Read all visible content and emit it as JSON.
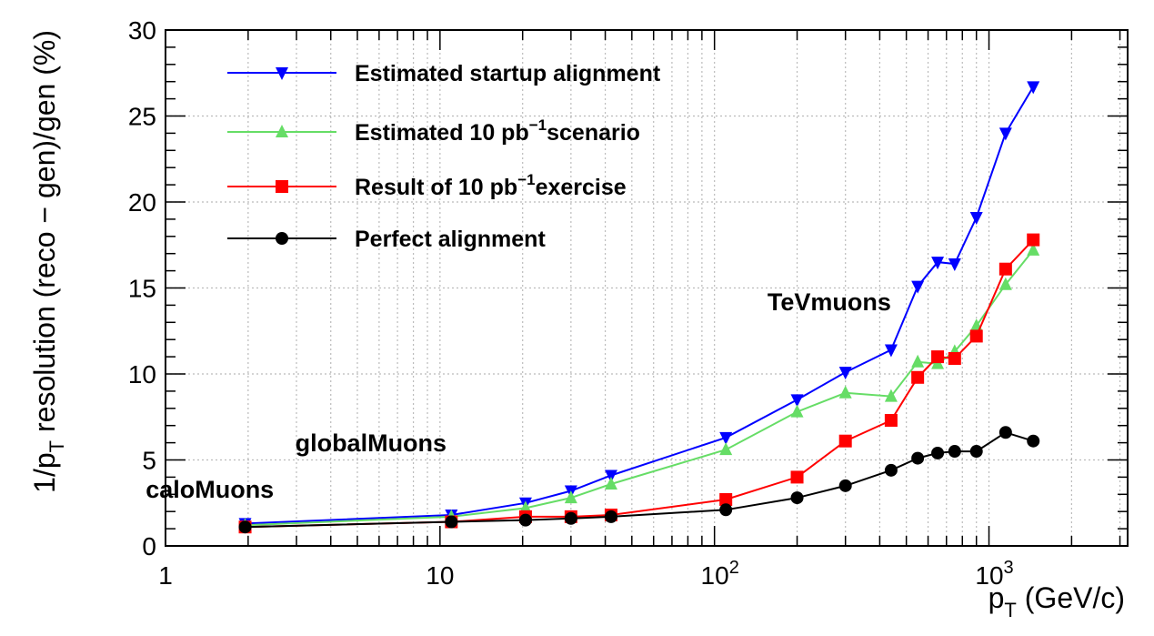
{
  "chart_data": {
    "type": "line",
    "xscale": "log",
    "xlim": [
      1,
      3200
    ],
    "ylim": [
      0,
      30
    ],
    "grid": true,
    "legend_position": "top-left",
    "title": "",
    "xlabel": {
      "main": "p",
      "sub": "T",
      "rest": " (GeV/c)"
    },
    "ylabel": {
      "main": "1/p",
      "sub": "T",
      "rest": " resolution (reco − gen)/gen (%)"
    },
    "x_ticks": [
      {
        "value": 1,
        "label": "1",
        "sup": ""
      },
      {
        "value": 10,
        "label": "10",
        "sup": ""
      },
      {
        "value": 100,
        "label": "10",
        "sup": "2"
      },
      {
        "value": 1000,
        "label": "10",
        "sup": "3"
      }
    ],
    "y_ticks": [
      0,
      5,
      10,
      15,
      20,
      25,
      30
    ],
    "series": [
      {
        "name": "Estimated startup alignment",
        "name_parts": [
          "Estimated startup alignment"
        ],
        "color": "#0000ff",
        "marker": "triangle-down",
        "points": [
          [
            1.95,
            1.3
          ],
          [
            11,
            1.8
          ],
          [
            20.5,
            2.5
          ],
          [
            30,
            3.2
          ],
          [
            42,
            4.1
          ],
          [
            110,
            6.3
          ],
          [
            200,
            8.5
          ],
          [
            300,
            10.1
          ],
          [
            440,
            11.4
          ],
          [
            550,
            15.1
          ],
          [
            650,
            16.5
          ],
          [
            750,
            16.4
          ],
          [
            900,
            19.1
          ],
          [
            1150,
            24.0
          ],
          [
            1450,
            26.7
          ]
        ]
      },
      {
        "name": "Estimated 10 pb⁻¹scenario",
        "name_parts": [
          "Estimated 10 pb",
          "−1",
          "scenario"
        ],
        "color": "#66dd66",
        "marker": "triangle-up",
        "points": [
          [
            1.95,
            1.2
          ],
          [
            11,
            1.7
          ],
          [
            20.5,
            2.2
          ],
          [
            30,
            2.8
          ],
          [
            42,
            3.6
          ],
          [
            110,
            5.6
          ],
          [
            200,
            7.8
          ],
          [
            300,
            8.9
          ],
          [
            440,
            8.7
          ],
          [
            550,
            10.7
          ],
          [
            650,
            10.6
          ],
          [
            750,
            11.3
          ],
          [
            900,
            12.8
          ],
          [
            1150,
            15.2
          ],
          [
            1450,
            17.2
          ]
        ]
      },
      {
        "name": "Result of 10 pb⁻¹exercise",
        "name_parts": [
          "Result of 10 pb",
          "−1",
          "exercise"
        ],
        "color": "#ff0000",
        "marker": "square",
        "points": [
          [
            1.95,
            1.1
          ],
          [
            11,
            1.4
          ],
          [
            20.5,
            1.7
          ],
          [
            30,
            1.7
          ],
          [
            42,
            1.8
          ],
          [
            110,
            2.7
          ],
          [
            200,
            4.0
          ],
          [
            300,
            6.1
          ],
          [
            440,
            7.3
          ],
          [
            550,
            9.8
          ],
          [
            650,
            11.0
          ],
          [
            750,
            10.9
          ],
          [
            900,
            12.2
          ],
          [
            1150,
            16.1
          ],
          [
            1450,
            17.8
          ]
        ]
      },
      {
        "name": "Perfect alignment",
        "name_parts": [
          "Perfect alignment"
        ],
        "color": "#000000",
        "marker": "circle",
        "points": [
          [
            1.95,
            1.1
          ],
          [
            11,
            1.4
          ],
          [
            20.5,
            1.5
          ],
          [
            30,
            1.6
          ],
          [
            42,
            1.7
          ],
          [
            110,
            2.1
          ],
          [
            200,
            2.8
          ],
          [
            300,
            3.5
          ],
          [
            440,
            4.4
          ],
          [
            550,
            5.1
          ],
          [
            650,
            5.4
          ],
          [
            750,
            5.5
          ],
          [
            900,
            5.5
          ],
          [
            1150,
            6.6
          ],
          [
            1450,
            6.1
          ]
        ]
      }
    ],
    "annotations": [
      {
        "text": "TeVmuons",
        "x": 1,
        "y": 13.7,
        "x_at": 440
      },
      {
        "text": "globalMuons",
        "y": 5.5,
        "x_at": 5.6
      },
      {
        "text": "caloMuons",
        "y": 2.8,
        "x_at": 1.45
      }
    ]
  }
}
